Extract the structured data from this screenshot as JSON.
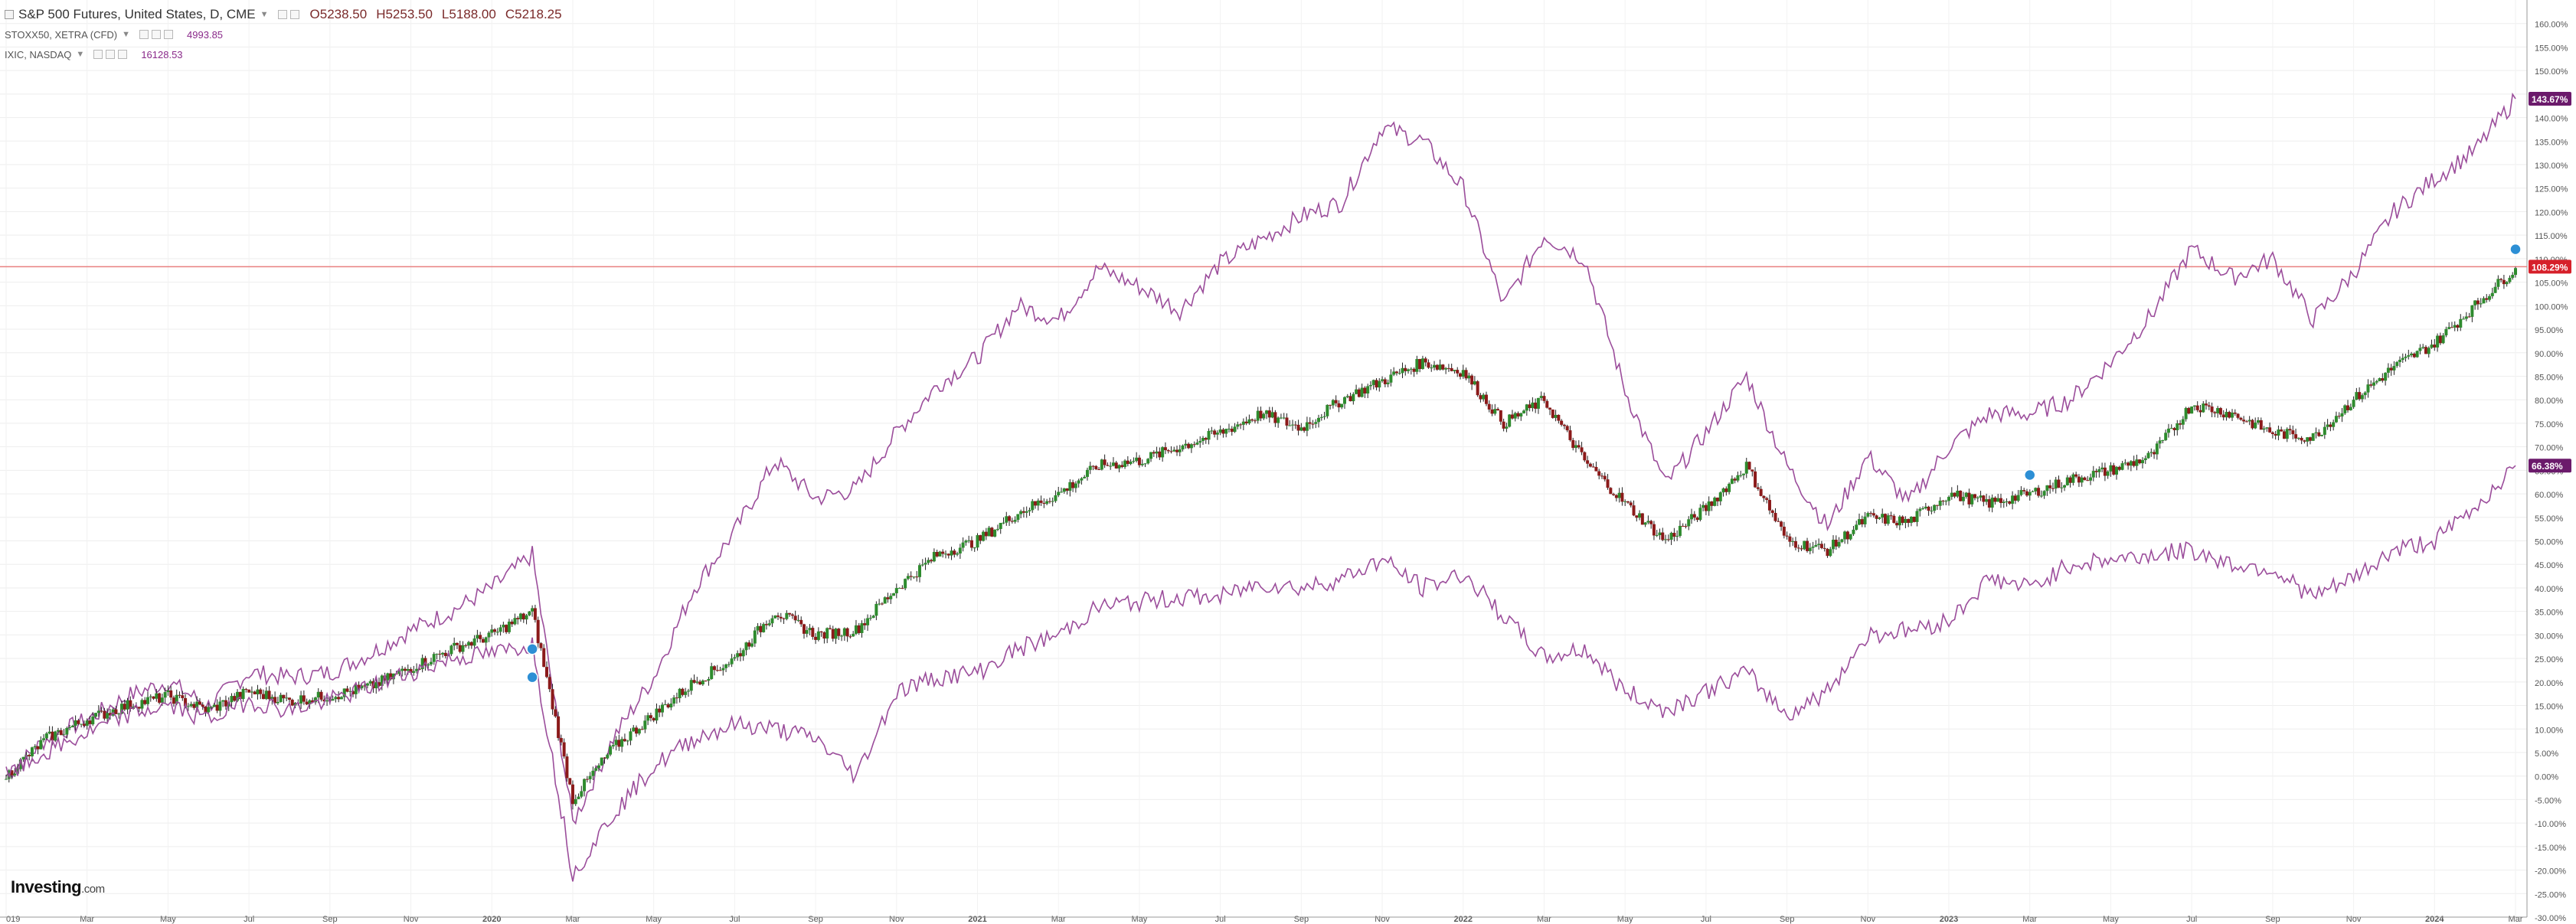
{
  "legend": {
    "main": {
      "name": "S&P 500 Futures, United States, D, CME",
      "o_label": "O",
      "o_value": "5238.50",
      "h_label": "H",
      "h_value": "5253.50",
      "l_label": "L",
      "l_value": "5188.00",
      "c_label": "C",
      "c_value": "5218.25"
    },
    "series2": {
      "name": "STOXX50, XETRA (CFD)",
      "value": "4993.85"
    },
    "series3": {
      "name": "IXIC, NASDAQ",
      "value": "16128.53"
    }
  },
  "brand": {
    "name": "Investing",
    "suffix": ".com"
  },
  "colors": {
    "compare_line": "#9b4d9b",
    "candle_up": "#2e8b2e",
    "candle_down": "#8b1a1a",
    "candle_wick": "#222222",
    "ref_line": "#e88080",
    "badge_red": "#d6202a",
    "badge_purple": "#6b1a6b",
    "marker": "#2d8fd5"
  },
  "chart_data": {
    "type": "line",
    "y_unit": "%",
    "ylim": [
      -30,
      165
    ],
    "y_ticks": [
      "160.00%",
      "155.00%",
      "150.00%",
      "145.00%",
      "140.00%",
      "135.00%",
      "130.00%",
      "125.00%",
      "120.00%",
      "115.00%",
      "110.00%",
      "105.00%",
      "100.00%",
      "95.00%",
      "90.00%",
      "85.00%",
      "80.00%",
      "75.00%",
      "70.00%",
      "65.00%",
      "60.00%",
      "55.00%",
      "50.00%",
      "45.00%",
      "40.00%",
      "35.00%",
      "30.00%",
      "25.00%",
      "20.00%",
      "15.00%",
      "10.00%",
      "5.00%",
      "0.00%",
      "-5.00%",
      "-10.00%",
      "-15.00%",
      "-20.00%",
      "-25.00%",
      "-30.00%"
    ],
    "x_ticks": [
      "019",
      "Mar",
      "May",
      "Jul",
      "Sep",
      "Nov",
      "2020",
      "Mar",
      "May",
      "Jul",
      "Sep",
      "Nov",
      "2021",
      "Mar",
      "May",
      "Jul",
      "Sep",
      "Nov",
      "2022",
      "Mar",
      "May",
      "Jul",
      "Sep",
      "Nov",
      "2023",
      "Mar",
      "May",
      "Jul",
      "Sep",
      "Nov",
      "2024",
      "Mar"
    ],
    "x_start": "2019-01",
    "x_end": "2024-03",
    "grid": true,
    "reference_line": 108.29,
    "badges": [
      {
        "series": "IXIC",
        "label": "143.67%"
      },
      {
        "series": "S&P 500 Futures",
        "label": "108.29%"
      },
      {
        "series": "STOXX50",
        "label": "66.38%"
      }
    ],
    "series": [
      {
        "name": "IXIC",
        "style": "line",
        "x": [
          "2019-01",
          "2019-02",
          "2019-03",
          "2019-04",
          "2019-05",
          "2019-06",
          "2019-07",
          "2019-08",
          "2019-09",
          "2019-10",
          "2019-11",
          "2019-12",
          "2020-01",
          "2020-02",
          "2020-03",
          "2020-04",
          "2020-05",
          "2020-06",
          "2020-07",
          "2020-08",
          "2020-09",
          "2020-10",
          "2020-11",
          "2020-12",
          "2021-01",
          "2021-02",
          "2021-03",
          "2021-04",
          "2021-05",
          "2021-06",
          "2021-07",
          "2021-08",
          "2021-09",
          "2021-10",
          "2021-11",
          "2021-12",
          "2022-01",
          "2022-02",
          "2022-03",
          "2022-04",
          "2022-05",
          "2022-06",
          "2022-07",
          "2022-08",
          "2022-09",
          "2022-10",
          "2022-11",
          "2022-12",
          "2023-01",
          "2023-02",
          "2023-03",
          "2023-04",
          "2023-05",
          "2023-06",
          "2023-07",
          "2023-08",
          "2023-09",
          "2023-10",
          "2023-11",
          "2023-12",
          "2024-01",
          "2024-02",
          "2024-03"
        ],
        "values": [
          0,
          8,
          12,
          17,
          20,
          15,
          22,
          21,
          22,
          26,
          31,
          35,
          40,
          47,
          -10,
          8,
          21,
          40,
          52,
          67,
          59,
          61,
          73,
          83,
          89,
          100,
          97,
          108,
          104,
          99,
          109,
          114,
          119,
          122,
          138,
          135,
          125,
          100,
          115,
          110,
          82,
          62,
          73,
          85,
          66,
          53,
          68,
          58,
          70,
          77,
          77,
          80,
          88,
          98,
          112,
          106,
          110,
          97,
          107,
          120,
          127,
          133,
          144
        ]
      },
      {
        "name": "S&P 500 Futures",
        "style": "candlestick",
        "x": [
          "2019-01",
          "2019-02",
          "2019-03",
          "2019-04",
          "2019-05",
          "2019-06",
          "2019-07",
          "2019-08",
          "2019-09",
          "2019-10",
          "2019-11",
          "2019-12",
          "2020-01",
          "2020-02",
          "2020-03",
          "2020-04",
          "2020-05",
          "2020-06",
          "2020-07",
          "2020-08",
          "2020-09",
          "2020-10",
          "2020-11",
          "2020-12",
          "2021-01",
          "2021-02",
          "2021-03",
          "2021-04",
          "2021-05",
          "2021-06",
          "2021-07",
          "2021-08",
          "2021-09",
          "2021-10",
          "2021-11",
          "2021-12",
          "2022-01",
          "2022-02",
          "2022-03",
          "2022-04",
          "2022-05",
          "2022-06",
          "2022-07",
          "2022-08",
          "2022-09",
          "2022-10",
          "2022-11",
          "2022-12",
          "2023-01",
          "2023-02",
          "2023-03",
          "2023-04",
          "2023-05",
          "2023-06",
          "2023-07",
          "2023-08",
          "2023-09",
          "2023-10",
          "2023-11",
          "2023-12",
          "2024-01",
          "2024-02",
          "2024-03"
        ],
        "values": [
          0,
          8,
          12,
          15,
          17,
          14,
          18,
          16,
          17,
          19,
          23,
          27,
          30,
          35,
          -5,
          6,
          13,
          20,
          25,
          35,
          30,
          31,
          40,
          47,
          50,
          56,
          60,
          66,
          67,
          70,
          73,
          77,
          74,
          80,
          84,
          88,
          86,
          75,
          80,
          67,
          58,
          50,
          57,
          66,
          50,
          48,
          55,
          54,
          60,
          58,
          60,
          63,
          65,
          68,
          79,
          77,
          73,
          72,
          80,
          87,
          92,
          100,
          108
        ]
      },
      {
        "name": "STOXX50",
        "style": "line",
        "x": [
          "2019-01",
          "2019-02",
          "2019-03",
          "2019-04",
          "2019-05",
          "2019-06",
          "2019-07",
          "2019-08",
          "2019-09",
          "2019-10",
          "2019-11",
          "2019-12",
          "2020-01",
          "2020-02",
          "2020-03",
          "2020-04",
          "2020-05",
          "2020-06",
          "2020-07",
          "2020-08",
          "2020-09",
          "2020-10",
          "2020-11",
          "2020-12",
          "2021-01",
          "2021-02",
          "2021-03",
          "2021-04",
          "2021-05",
          "2021-06",
          "2021-07",
          "2021-08",
          "2021-09",
          "2021-10",
          "2021-11",
          "2021-12",
          "2022-01",
          "2022-02",
          "2022-03",
          "2022-04",
          "2022-05",
          "2022-06",
          "2022-07",
          "2022-08",
          "2022-09",
          "2022-10",
          "2022-11",
          "2022-12",
          "2023-01",
          "2023-02",
          "2023-03",
          "2023-04",
          "2023-05",
          "2023-06",
          "2023-07",
          "2023-08",
          "2023-09",
          "2023-10",
          "2023-11",
          "2023-12",
          "2024-01",
          "2024-02",
          "2024-03"
        ],
        "values": [
          0,
          5,
          9,
          13,
          15,
          12,
          16,
          14,
          16,
          19,
          22,
          25,
          26,
          28,
          -21,
          -8,
          2,
          8,
          11,
          10,
          8,
          0,
          18,
          21,
          22,
          27,
          30,
          36,
          37,
          38,
          38,
          41,
          40,
          42,
          46,
          40,
          43,
          34,
          25,
          27,
          18,
          14,
          18,
          22,
          13,
          18,
          30,
          31,
          33,
          42,
          40,
          45,
          46,
          47,
          48,
          45,
          44,
          38,
          42,
          48,
          50,
          57,
          66
        ]
      }
    ],
    "markers": [
      {
        "series": "S&P 500 Futures",
        "x": "2020-02"
      },
      {
        "series": "S&P 500 Futures",
        "x": "2020-02"
      },
      {
        "series": "S&P 500 Futures",
        "x": "2023-03"
      },
      {
        "series": "S&P 500 Futures",
        "x": "2024-03"
      }
    ]
  }
}
